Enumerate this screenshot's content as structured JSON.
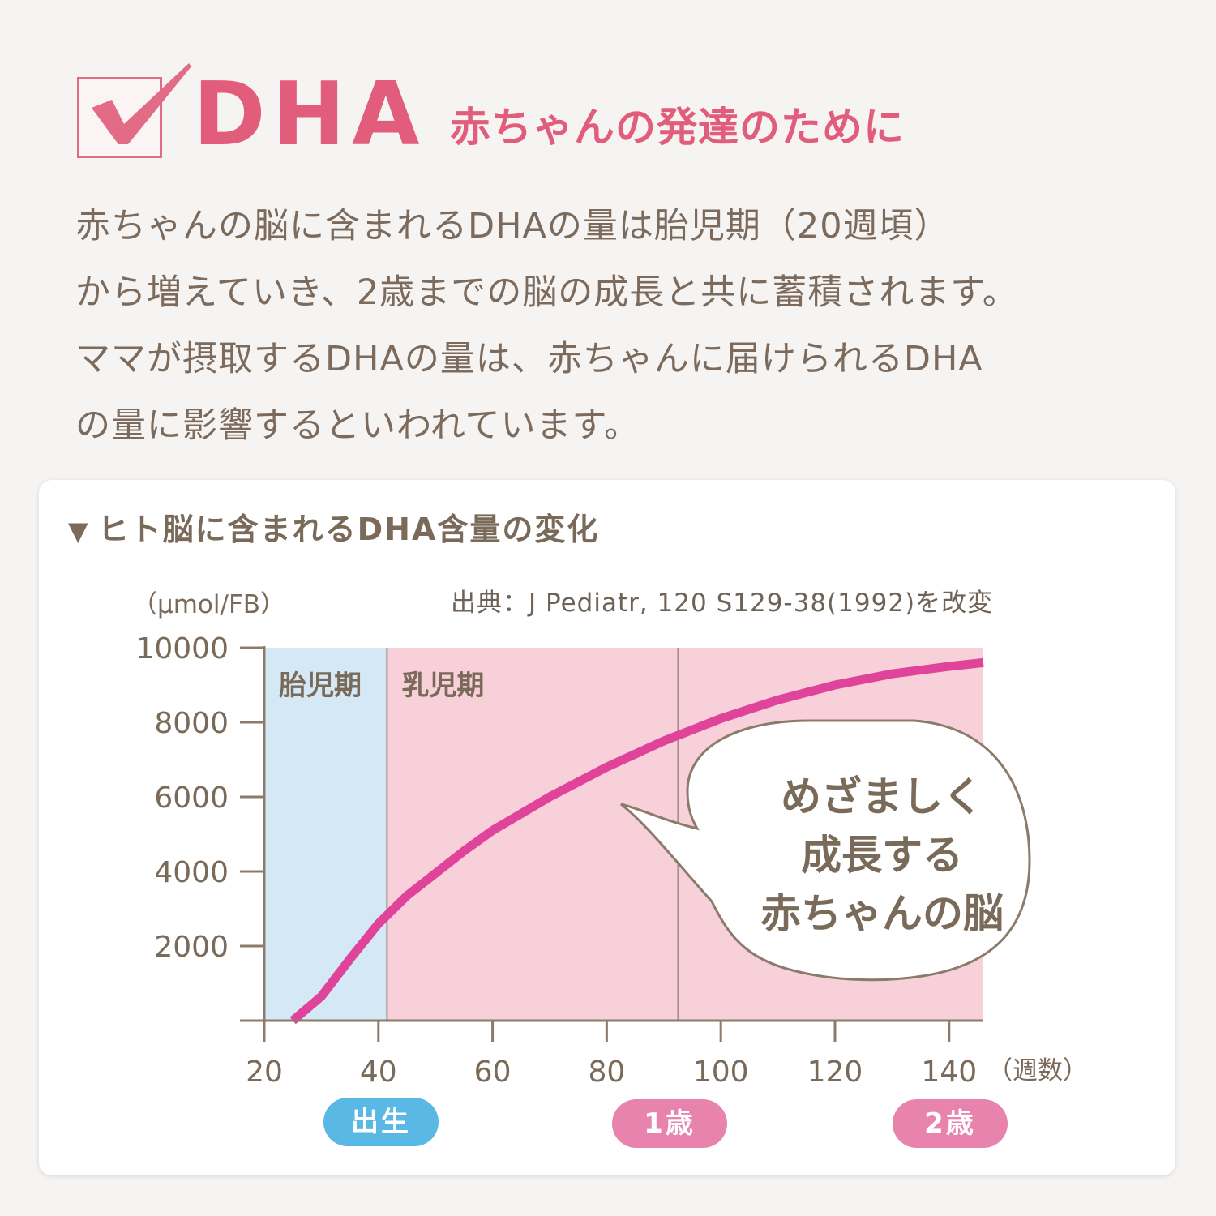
{
  "header": {
    "title": "DHA",
    "subtitle": "赤ちゃんの発達のために",
    "check_icon": "checkbox-checked-icon"
  },
  "intro": {
    "lines": [
      "赤ちゃんの脳に含まれるDHAの量は胎児期（20週頃）",
      "から増えていき、2歳までの脳の成長と共に蓄積されます。",
      "ママが摂取するDHAの量は、赤ちゃんに届けられるDHA",
      "の量に影響するといわれています。"
    ]
  },
  "chart_card": {
    "title": "ヒト脳に含まれるDHA含量の変化",
    "title_marker": "▼",
    "unit": "（µmol/FB）",
    "source": "出典：J Pediatr, 120 S129-38(1992)を改変",
    "x_unit": "（週数）",
    "regions": [
      {
        "label": "胎児期",
        "x_from": 20,
        "x_to": 41.5,
        "color": "#d4e8f5"
      },
      {
        "label": "乳児期",
        "x_from": 41.5,
        "x_to": 146,
        "color": "#f8d0d9"
      }
    ],
    "callout": {
      "lines": [
        "めざましく",
        "成長する",
        "赤ちゃんの脳"
      ]
    },
    "milestones": [
      {
        "label": "出生",
        "x": 41.5,
        "color": "#5ab8e5"
      },
      {
        "label": "1歳",
        "x": 92.5,
        "color": "#e783ad"
      },
      {
        "label": "2歳",
        "x": 140,
        "color": "#e783ad"
      }
    ]
  },
  "chart_data": {
    "type": "line",
    "title": "ヒト脳に含まれるDHA含量の変化",
    "xlabel": "（週数）",
    "ylabel": "（µmol/FB）",
    "xlim": [
      20,
      146
    ],
    "ylim": [
      0,
      10000
    ],
    "x_ticks": [
      20,
      40,
      60,
      80,
      100,
      120,
      140
    ],
    "y_ticks": [
      2000,
      4000,
      6000,
      8000,
      10000
    ],
    "grid": false,
    "series": [
      {
        "color": "#e0449a",
        "x": [
          25,
          30,
          35,
          40,
          45,
          50,
          55,
          60,
          65,
          70,
          75,
          80,
          85,
          90,
          95,
          100,
          105,
          110,
          115,
          120,
          125,
          130,
          135,
          140,
          146
        ],
        "y": [
          0,
          650,
          1650,
          2600,
          3350,
          3950,
          4550,
          5100,
          5550,
          6000,
          6400,
          6800,
          7150,
          7500,
          7800,
          8100,
          8350,
          8600,
          8800,
          9000,
          9150,
          9300,
          9400,
          9500,
          9600
        ]
      }
    ],
    "vertical_lines": [
      41.5,
      92.5
    ]
  },
  "colors": {
    "accent_pink": "#e25d7c",
    "text_brown": "#7c6b5c",
    "curve": "#e0449a",
    "fetal_bg": "#d4e8f5",
    "infant_bg": "#f8d0d9"
  }
}
